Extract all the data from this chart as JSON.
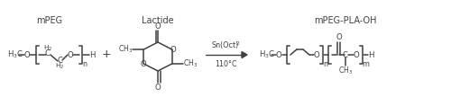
{
  "bg_color": "#ffffff",
  "line_color": "#404040",
  "text_color": "#404040",
  "figsize": [
    5.0,
    1.18
  ],
  "dpi": 100,
  "label_mPEG": "mPEG",
  "label_Lactide": "Lactide",
  "label_product": "mPEG-PLA-OH",
  "arrow_text1": "Sn(Oct)",
  "arrow_sub2": "2",
  "arrow_text3": "110°C"
}
